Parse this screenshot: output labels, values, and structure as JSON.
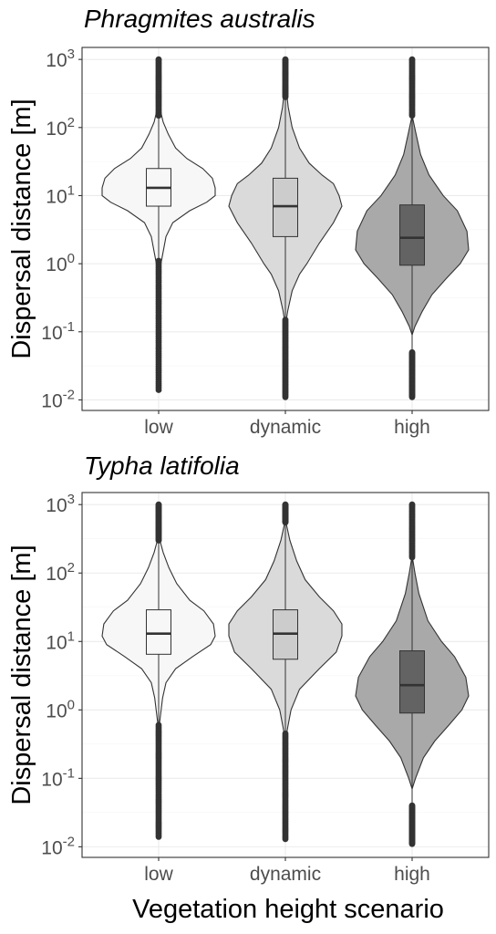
{
  "colors": {
    "low": "#f7f7f7",
    "dynamic": "#dadada",
    "high": "#a9a9a9",
    "box_low": "#f7f7f7",
    "box_dynamic": "#cccccc",
    "box_high": "#636363",
    "outline": "#333333"
  },
  "xlabel": "Vegetation height  scenario",
  "ylabel": "Dispersal distance [m]",
  "chart_data": [
    {
      "type": "violin",
      "title": "Phragmites australis",
      "y_scale": "log10",
      "ylim": [
        0.007,
        1500
      ],
      "yticks": [
        {
          "base": "10",
          "exp": "-2"
        },
        {
          "base": "10",
          "exp": "-1"
        },
        {
          "base": "10",
          "exp": "0"
        },
        {
          "base": "10",
          "exp": "1"
        },
        {
          "base": "10",
          "exp": "2"
        },
        {
          "base": "10",
          "exp": "3"
        }
      ],
      "categories": [
        "low",
        "dynamic",
        "high"
      ],
      "series": [
        {
          "category": "low",
          "q1": 7,
          "median": 13,
          "q3": 25,
          "whisker_low": 1.1,
          "whisker_high": 150,
          "outlier_min": 0.014,
          "outlier_max": 1000,
          "density": [
            [
              0.6,
              0.0
            ],
            [
              1.0,
              0.04
            ],
            [
              1.5,
              0.08
            ],
            [
              2.5,
              0.13
            ],
            [
              4,
              0.25
            ],
            [
              6,
              0.55
            ],
            [
              8,
              0.85
            ],
            [
              10,
              1.0
            ],
            [
              13,
              1.0
            ],
            [
              18,
              0.95
            ],
            [
              25,
              0.78
            ],
            [
              35,
              0.5
            ],
            [
              50,
              0.3
            ],
            [
              80,
              0.17
            ],
            [
              120,
              0.08
            ],
            [
              180,
              0.03
            ],
            [
              250,
              0.0
            ]
          ]
        },
        {
          "category": "dynamic",
          "q1": 2.5,
          "median": 7,
          "q3": 18,
          "whisker_low": 0.15,
          "whisker_high": 280,
          "outlier_min": 0.011,
          "outlier_max": 1000,
          "density": [
            [
              0.12,
              0.0
            ],
            [
              0.2,
              0.04
            ],
            [
              0.4,
              0.12
            ],
            [
              0.7,
              0.25
            ],
            [
              1,
              0.38
            ],
            [
              2,
              0.6
            ],
            [
              4,
              0.85
            ],
            [
              7,
              1.0
            ],
            [
              10,
              0.95
            ],
            [
              15,
              0.85
            ],
            [
              20,
              0.65
            ],
            [
              30,
              0.42
            ],
            [
              50,
              0.25
            ],
            [
              100,
              0.12
            ],
            [
              200,
              0.05
            ],
            [
              400,
              0.01
            ]
          ]
        },
        {
          "category": "high",
          "q1": 0.95,
          "median": 2.4,
          "q3": 7.3,
          "whisker_low": 0.05,
          "whisker_high": 150,
          "outlier_min": 0.011,
          "outlier_max": 1000,
          "density": [
            [
              0.09,
              0.0
            ],
            [
              0.12,
              0.05
            ],
            [
              0.2,
              0.18
            ],
            [
              0.35,
              0.35
            ],
            [
              0.6,
              0.6
            ],
            [
              1,
              0.85
            ],
            [
              1.6,
              1.0
            ],
            [
              3,
              0.97
            ],
            [
              6,
              0.8
            ],
            [
              10,
              0.55
            ],
            [
              20,
              0.3
            ],
            [
              40,
              0.15
            ],
            [
              80,
              0.07
            ],
            [
              150,
              0.0
            ]
          ]
        }
      ]
    },
    {
      "type": "violin",
      "title": "Typha latifolia",
      "y_scale": "log10",
      "ylim": [
        0.007,
        1500
      ],
      "yticks": [
        {
          "base": "10",
          "exp": "-2"
        },
        {
          "base": "10",
          "exp": "-1"
        },
        {
          "base": "10",
          "exp": "0"
        },
        {
          "base": "10",
          "exp": "1"
        },
        {
          "base": "10",
          "exp": "2"
        },
        {
          "base": "10",
          "exp": "3"
        }
      ],
      "categories": [
        "low",
        "dynamic",
        "high"
      ],
      "series": [
        {
          "category": "low",
          "q1": 6.5,
          "median": 13,
          "q3": 29,
          "whisker_low": 0.6,
          "whisker_high": 300,
          "outlier_min": 0.014,
          "outlier_max": 1000,
          "density": [
            [
              0.5,
              0.0
            ],
            [
              0.8,
              0.03
            ],
            [
              1.5,
              0.07
            ],
            [
              2.5,
              0.13
            ],
            [
              4,
              0.3
            ],
            [
              6,
              0.6
            ],
            [
              9,
              0.92
            ],
            [
              12,
              1.0
            ],
            [
              18,
              0.97
            ],
            [
              28,
              0.8
            ],
            [
              40,
              0.55
            ],
            [
              70,
              0.32
            ],
            [
              120,
              0.18
            ],
            [
              200,
              0.08
            ],
            [
              350,
              0.0
            ]
          ]
        },
        {
          "category": "dynamic",
          "q1": 5.5,
          "median": 13,
          "q3": 29,
          "whisker_low": 0.45,
          "whisker_high": 550,
          "outlier_min": 0.013,
          "outlier_max": 1000,
          "density": [
            [
              0.35,
              0.0
            ],
            [
              0.55,
              0.04
            ],
            [
              1,
              0.1
            ],
            [
              2,
              0.25
            ],
            [
              4,
              0.6
            ],
            [
              7,
              0.9
            ],
            [
              12,
              1.0
            ],
            [
              18,
              1.0
            ],
            [
              28,
              0.85
            ],
            [
              45,
              0.6
            ],
            [
              80,
              0.35
            ],
            [
              150,
              0.2
            ],
            [
              300,
              0.08
            ],
            [
              600,
              0.0
            ]
          ]
        },
        {
          "category": "high",
          "q1": 0.9,
          "median": 2.3,
          "q3": 7.3,
          "whisker_low": 0.04,
          "whisker_high": 170,
          "outlier_min": 0.011,
          "outlier_max": 1000,
          "density": [
            [
              0.07,
              0.0
            ],
            [
              0.1,
              0.06
            ],
            [
              0.2,
              0.2
            ],
            [
              0.35,
              0.4
            ],
            [
              0.6,
              0.65
            ],
            [
              1,
              0.88
            ],
            [
              1.6,
              1.0
            ],
            [
              3,
              0.95
            ],
            [
              6,
              0.75
            ],
            [
              10,
              0.52
            ],
            [
              20,
              0.28
            ],
            [
              50,
              0.12
            ],
            [
              100,
              0.05
            ],
            [
              180,
              0.0
            ]
          ]
        }
      ]
    }
  ]
}
